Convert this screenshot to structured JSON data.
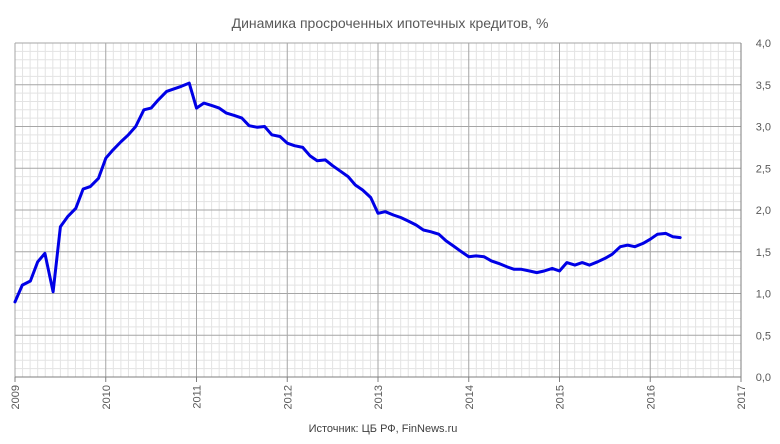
{
  "chart_data": {
    "type": "line",
    "title": "Динамика просроченных ипотечных кредитов, %",
    "source": "Источник: ЦБ РФ, FinNews.ru",
    "xlabel": "",
    "ylabel": "",
    "xlim": [
      2009,
      2017
    ],
    "ylim": [
      0,
      4
    ],
    "y_ticks": [
      "0,0",
      "0,5",
      "1,0",
      "1,5",
      "2,0",
      "2,5",
      "3,0",
      "3,5",
      "4,0"
    ],
    "x_ticks": [
      "2009",
      "2010",
      "2011",
      "2012",
      "2013",
      "2014",
      "2015",
      "2016",
      "2017"
    ],
    "grid": true,
    "y_axis_position": "right",
    "line_color": "#0000e6",
    "series": [
      {
        "x": [
          2009.0,
          2009.08,
          2009.17,
          2009.25,
          2009.33,
          2009.42,
          2009.5,
          2009.58,
          2009.67,
          2009.75,
          2009.83,
          2009.92,
          2010.0,
          2010.08,
          2010.17,
          2010.25,
          2010.33,
          2010.42,
          2010.5,
          2010.58,
          2010.67,
          2010.75,
          2010.83,
          2010.92,
          2011.0,
          2011.08,
          2011.17,
          2011.25,
          2011.33,
          2011.42,
          2011.5,
          2011.58,
          2011.67,
          2011.75,
          2011.83,
          2011.92,
          2012.0,
          2012.08,
          2012.17,
          2012.25,
          2012.33,
          2012.42,
          2012.5,
          2012.58,
          2012.67,
          2012.75,
          2012.83,
          2012.92,
          2013.0,
          2013.08,
          2013.17,
          2013.25,
          2013.33,
          2013.42,
          2013.5,
          2013.58,
          2013.67,
          2013.75,
          2013.83,
          2013.92,
          2014.0,
          2014.08,
          2014.17,
          2014.25,
          2014.33,
          2014.42,
          2014.5,
          2014.58,
          2014.67,
          2014.75,
          2014.83,
          2014.92,
          2015.0,
          2015.08,
          2015.17,
          2015.25,
          2015.33,
          2015.42,
          2015.5,
          2015.58,
          2015.67,
          2015.75,
          2015.83,
          2015.92,
          2016.0,
          2016.08,
          2016.17,
          2016.25,
          2016.33
        ],
        "values": [
          0.9,
          1.1,
          1.15,
          1.38,
          1.48,
          1.02,
          1.8,
          1.92,
          2.02,
          2.25,
          2.28,
          2.38,
          2.62,
          2.72,
          2.82,
          2.9,
          3.0,
          3.2,
          3.22,
          3.32,
          3.42,
          3.45,
          3.48,
          3.52,
          3.22,
          3.28,
          3.25,
          3.22,
          3.16,
          3.13,
          3.1,
          3.01,
          2.99,
          3.0,
          2.9,
          2.88,
          2.8,
          2.77,
          2.75,
          2.65,
          2.59,
          2.6,
          2.53,
          2.47,
          2.4,
          2.3,
          2.24,
          2.15,
          1.96,
          1.98,
          1.94,
          1.91,
          1.87,
          1.82,
          1.76,
          1.74,
          1.71,
          1.63,
          1.57,
          1.5,
          1.44,
          1.45,
          1.44,
          1.39,
          1.36,
          1.32,
          1.29,
          1.29,
          1.27,
          1.25,
          1.27,
          1.3,
          1.27,
          1.37,
          1.34,
          1.37,
          1.34,
          1.38,
          1.42,
          1.47,
          1.56,
          1.58,
          1.56,
          1.6,
          1.65,
          1.71,
          1.72,
          1.68,
          1.67
        ]
      }
    ]
  }
}
